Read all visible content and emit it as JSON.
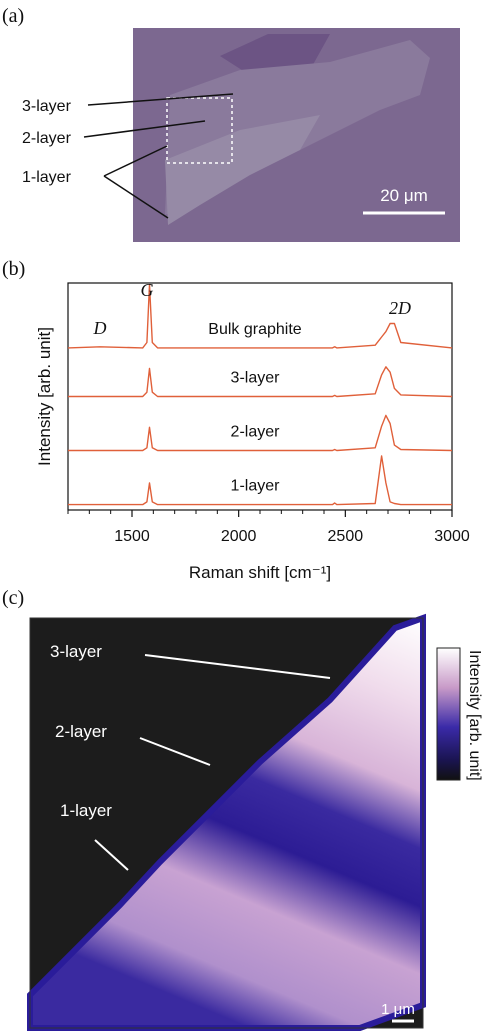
{
  "panel_labels": [
    "(a)",
    "(b)",
    "(c)"
  ],
  "panel_a": {
    "labels": [
      "3-layer",
      "2-layer",
      "1-layer"
    ],
    "scale_bar": "20 μm"
  },
  "chart_data": {
    "type": "line",
    "xlabel": "Raman shift [cm⁻¹]",
    "ylabel": "Intensity [arb. unit]",
    "x": [
      1200,
      1350,
      1550,
      1570,
      1582,
      1595,
      1620,
      2000,
      2440,
      2450,
      2460,
      2640,
      2670,
      2690,
      2710,
      2730,
      2760,
      3000
    ],
    "series": [
      {
        "name": "1-layer",
        "color": "#e0603a",
        "values": [
          0.1,
          0.1,
          0.1,
          0.15,
          0.5,
          0.15,
          0.1,
          0.1,
          0.1,
          0.13,
          0.1,
          0.12,
          1.0,
          0.5,
          0.15,
          0.12,
          0.1,
          0.1
        ]
      },
      {
        "name": "2-layer",
        "color": "#e0603a",
        "values": [
          1.1,
          1.1,
          1.1,
          1.15,
          1.53,
          1.15,
          1.1,
          1.1,
          1.1,
          1.12,
          1.1,
          1.15,
          1.55,
          1.75,
          1.6,
          1.2,
          1.12,
          1.1
        ]
      },
      {
        "name": "3-layer",
        "color": "#e0603a",
        "values": [
          2.1,
          2.1,
          2.1,
          2.18,
          2.62,
          2.18,
          2.1,
          2.1,
          2.1,
          2.12,
          2.1,
          2.15,
          2.5,
          2.65,
          2.55,
          2.25,
          2.13,
          2.1
        ]
      },
      {
        "name": "Bulk graphite",
        "color": "#e0603a",
        "values": [
          3.0,
          3.02,
          3.0,
          3.1,
          4.17,
          3.1,
          3.0,
          3.0,
          3.0,
          3.02,
          3.0,
          3.05,
          3.2,
          3.3,
          3.45,
          3.45,
          3.1,
          3.0
        ]
      }
    ],
    "annotations": [
      "G",
      "D",
      "2D"
    ],
    "xlim": [
      1200,
      3000
    ],
    "ylim": [
      0,
      4.2
    ],
    "xticks": [
      1500,
      2000,
      2500,
      3000
    ],
    "xminorticks": [
      1200,
      1300,
      1400,
      1600,
      1700,
      1800,
      1900,
      2100,
      2200,
      2300,
      2400,
      2600,
      2700,
      2800,
      2900
    ]
  },
  "panel_c": {
    "labels": [
      "3-layer",
      "2-layer",
      "1-layer"
    ],
    "colorbar_label": "Intensity [arb. unit]",
    "scale_bar": "1 μm"
  }
}
